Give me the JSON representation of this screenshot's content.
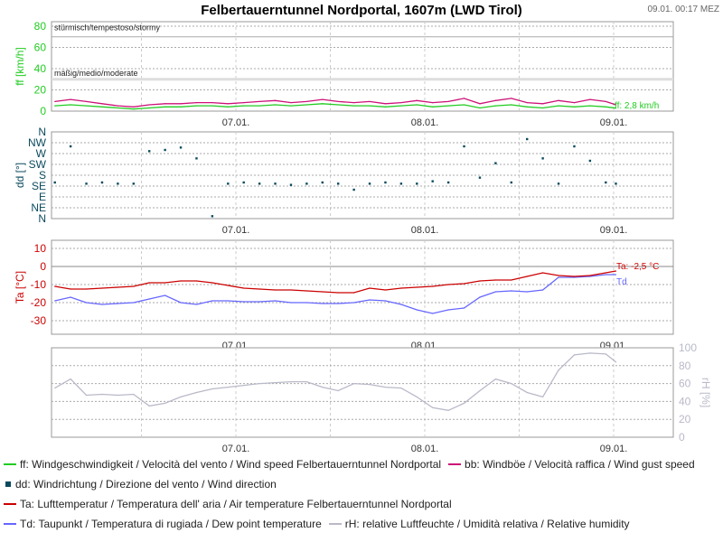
{
  "title": "Felbertauerntunnel Nordportal, 1607m (LWD Tirol)",
  "timestamp": "09.01. 00:17 MEZ",
  "colors": {
    "ff": "#22cc22",
    "bb": "#cc1177",
    "dd": "#0b4a5e",
    "Ta": "#cc0000",
    "Td": "#6666ff",
    "rH": "#b9b9c9",
    "grid": "#bbbbbb",
    "frame": "#999999"
  },
  "x_axis": {
    "tick_labels": [
      "07.01.",
      "08.01.",
      "09.01."
    ]
  },
  "chart_data": [
    {
      "type": "line",
      "ylabel": "ff [km/h]",
      "ylim": [
        0,
        80
      ],
      "yticks": [
        "0",
        "20",
        "40",
        "60",
        "80"
      ],
      "thresholds": [
        {
          "value": 70,
          "label": "stürmisch/tempestoso/stormy"
        },
        {
          "value": 30,
          "label": "mäßig/medio/moderate"
        }
      ],
      "current_label": "ff: 2,8 km/h",
      "x": [
        "06.01. 01:00",
        "06.01. 03:00",
        "06.01. 05:00",
        "06.01. 07:00",
        "06.01. 09:00",
        "06.01. 11:00",
        "06.01. 13:00",
        "06.01. 15:00",
        "06.01. 17:00",
        "06.01. 19:00",
        "06.01. 21:00",
        "06.01. 23:00",
        "07.01. 01:00",
        "07.01. 03:00",
        "07.01. 05:00",
        "07.01. 07:00",
        "07.01. 09:00",
        "07.01. 11:00",
        "07.01. 13:00",
        "07.01. 15:00",
        "07.01. 17:00",
        "07.01. 19:00",
        "07.01. 21:00",
        "07.01. 23:00",
        "08.01. 01:00",
        "08.01. 03:00",
        "08.01. 05:00",
        "08.01. 07:00",
        "08.01. 09:00",
        "08.01. 11:00",
        "08.01. 13:00",
        "08.01. 15:00",
        "08.01. 17:00",
        "08.01. 19:00",
        "08.01. 21:00",
        "08.01. 23:00",
        "09.01. 00:17"
      ],
      "series": [
        {
          "name": "ff",
          "values": [
            5,
            6,
            5,
            4,
            3,
            2,
            3,
            4,
            4,
            5,
            5,
            4,
            5,
            5,
            6,
            5,
            6,
            7,
            6,
            5,
            5,
            4,
            5,
            6,
            4,
            5,
            6,
            3,
            5,
            6,
            4,
            3,
            5,
            4,
            5,
            4,
            2.8
          ]
        },
        {
          "name": "bb",
          "values": [
            9,
            11,
            9,
            7,
            5,
            4,
            6,
            7,
            7,
            8,
            8,
            7,
            8,
            9,
            10,
            8,
            9,
            11,
            9,
            8,
            9,
            7,
            8,
            10,
            8,
            9,
            12,
            7,
            10,
            12,
            8,
            7,
            10,
            8,
            11,
            9,
            6
          ]
        }
      ]
    },
    {
      "type": "scatter",
      "ylabel": "dd [°]",
      "ylim": [
        0,
        360
      ],
      "yticks": [
        "N",
        "NE",
        "E",
        "SE",
        "S",
        "SW",
        "W",
        "NW",
        "N"
      ],
      "series": [
        {
          "name": "dd",
          "values": [
            150,
            300,
            145,
            150,
            145,
            145,
            280,
            285,
            295,
            250,
            10,
            145,
            150,
            145,
            145,
            140,
            145,
            150,
            145,
            120,
            145,
            150,
            145,
            145,
            155,
            150,
            300,
            170,
            230,
            150,
            330,
            250,
            145,
            300,
            240,
            150,
            145
          ]
        }
      ]
    },
    {
      "type": "line",
      "ylabel": "Ta [°C]",
      "ylim": [
        -35,
        15
      ],
      "yticks": [
        "-30",
        "-20",
        "-10",
        "0",
        "10"
      ],
      "current_label": "Ta: -2,5 °C",
      "td_label": "Td",
      "series": [
        {
          "name": "Ta",
          "values": [
            -11,
            -12.5,
            -12.5,
            -12,
            -11.5,
            -11,
            -9,
            -9,
            -8,
            -8,
            -9,
            -10.5,
            -12,
            -12.5,
            -13,
            -13,
            -13.5,
            -14,
            -14.5,
            -14.5,
            -12,
            -13,
            -12,
            -11.5,
            -11,
            -10,
            -9.5,
            -8,
            -7.5,
            -7.5,
            -5.5,
            -3.5,
            -5,
            -5.5,
            -5,
            -3.5,
            -2.5
          ]
        },
        {
          "name": "Td",
          "values": [
            -19,
            -17,
            -20,
            -21,
            -20.5,
            -20,
            -18,
            -16,
            -20,
            -21,
            -19,
            -19,
            -19.5,
            -19.5,
            -19,
            -20,
            -20,
            -20.5,
            -20.5,
            -20,
            -18.5,
            -19,
            -21,
            -24,
            -26,
            -24,
            -23,
            -17,
            -14,
            -13.5,
            -14,
            -13,
            -6,
            -6,
            -5.5,
            -4.5,
            -4.5
          ]
        }
      ]
    },
    {
      "type": "line",
      "ylabel": "rH [%]",
      "ylim": [
        0,
        100
      ],
      "yticks": [
        "0",
        "20",
        "40",
        "60",
        "80",
        "100"
      ],
      "series": [
        {
          "name": "rH",
          "values": [
            55,
            65,
            47,
            48,
            47,
            48,
            35,
            38,
            45,
            50,
            54,
            56,
            58,
            60,
            61,
            62,
            62,
            56,
            52,
            60,
            59,
            56,
            55,
            45,
            33,
            30,
            38,
            52,
            65,
            60,
            50,
            45,
            75,
            92,
            94,
            93,
            84
          ]
        }
      ]
    }
  ],
  "legend": [
    {
      "items": [
        {
          "key": "ff",
          "text": "ff: Windgeschwindigkeit / Velocità del vento / Wind speed  Felbertauerntunnel Nordportal"
        },
        {
          "key": "bb",
          "text": "bb: Windböe / Velocità raffica / Wind gust speed"
        }
      ]
    },
    {
      "items": [
        {
          "key": "dd",
          "text": "dd: Windrichtung / Direzione del vento / Wind direction"
        }
      ]
    },
    {
      "items": [
        {
          "key": "Ta",
          "text": "Ta: Lufttemperatur / Temperatura dell' aria / Air temperature  Felbertauerntunnel Nordportal"
        }
      ]
    },
    {
      "items": [
        {
          "key": "Td",
          "text": "Td: Taupunkt / Temperatura di rugiada / Dew point temperature"
        },
        {
          "key": "rH",
          "text": "rH: relative Luftfeuchte / Umidità relativa / Relative humidity"
        }
      ]
    }
  ]
}
